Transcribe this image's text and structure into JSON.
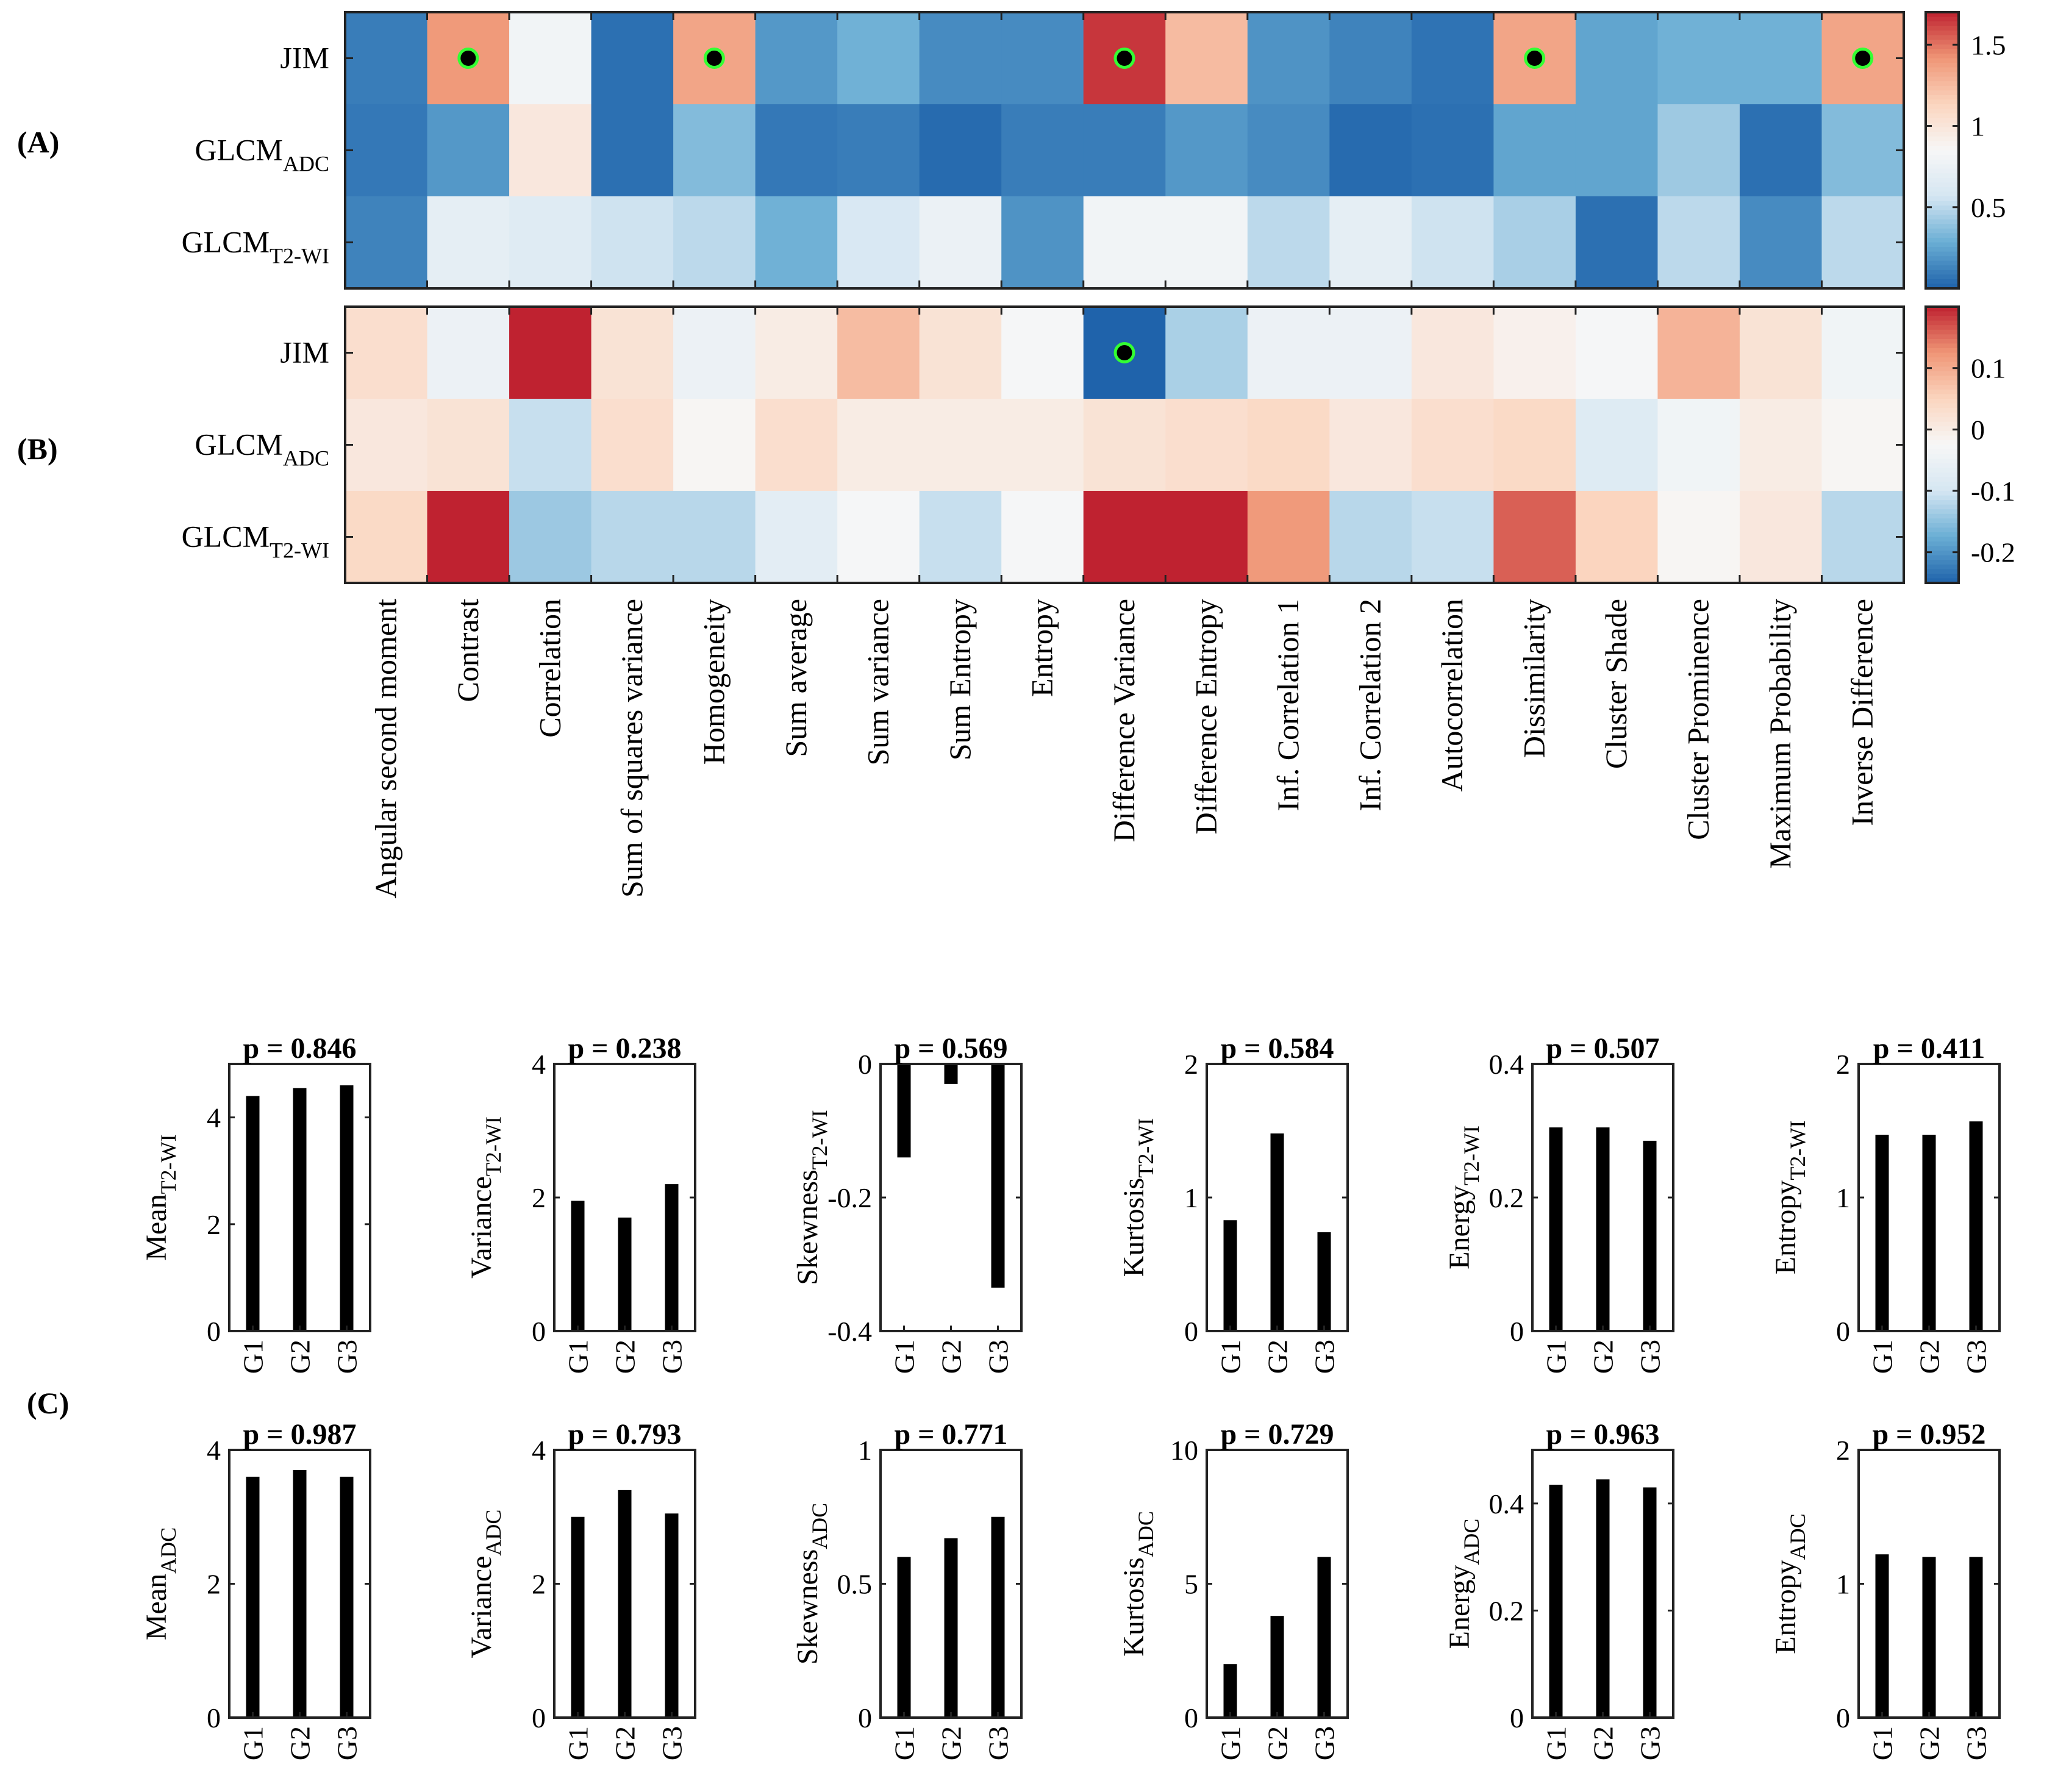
{
  "features": [
    "Angular second moment",
    "Contrast",
    "Correlation",
    "Sum of squares variance",
    "Homogeneity",
    "Sum average",
    "Sum variance",
    "Sum Entropy",
    "Entropy",
    "Difference Variance",
    "Difference Entropy",
    "Inf. Correlation 1",
    "Inf. Correlation 2",
    "Autocorrelation",
    "Dissimilarity",
    "Cluster Shade",
    "Cluster Prominence",
    "Maximum Probability",
    "Inverse Difference"
  ],
  "panelA": {
    "label": "(A)",
    "rows": [
      {
        "main": "JIM",
        "sub": ""
      },
      {
        "main": "GLCM",
        "sub": "ADC"
      },
      {
        "main": "GLCM",
        "sub": "T2-WI"
      }
    ],
    "values": [
      [
        0.1,
        1.4,
        0.8,
        0.05,
        1.35,
        0.2,
        0.3,
        0.15,
        0.15,
        1.65,
        1.25,
        0.18,
        0.12,
        0.06,
        1.35,
        0.25,
        0.3,
        0.3,
        1.35
      ],
      [
        0.08,
        0.2,
        0.98,
        0.05,
        0.35,
        0.08,
        0.1,
        0.03,
        0.1,
        0.1,
        0.2,
        0.15,
        0.03,
        0.05,
        0.25,
        0.25,
        0.42,
        0.05,
        0.35
      ],
      [
        0.12,
        0.7,
        0.65,
        0.55,
        0.5,
        0.3,
        0.6,
        0.75,
        0.18,
        0.8,
        0.8,
        0.5,
        0.7,
        0.55,
        0.45,
        0.05,
        0.5,
        0.15,
        0.5
      ]
    ],
    "markers": [
      [
        0,
        1
      ],
      [
        0,
        4
      ],
      [
        0,
        9
      ],
      [
        0,
        14
      ],
      [
        0,
        18
      ]
    ],
    "colorbar": {
      "min": 0.0,
      "max": 1.7,
      "ticks": [
        0.5,
        1,
        1.5
      ],
      "tick_labels": [
        "0.5",
        "1",
        "1.5"
      ]
    }
  },
  "panelB": {
    "label": "(B)",
    "rows": [
      {
        "main": "JIM",
        "sub": ""
      },
      {
        "main": "GLCM",
        "sub": "ADC"
      },
      {
        "main": "GLCM",
        "sub": "T2-WI"
      }
    ],
    "values": [
      [
        0.03,
        -0.05,
        0.2,
        0.02,
        -0.05,
        0.0,
        0.08,
        0.02,
        -0.03,
        -0.25,
        -0.13,
        -0.05,
        -0.05,
        0.01,
        -0.01,
        -0.03,
        0.09,
        0.02,
        -0.04
      ],
      [
        0.01,
        0.02,
        -0.11,
        0.03,
        -0.02,
        0.03,
        0.0,
        0.0,
        0.0,
        0.02,
        0.03,
        0.04,
        0.01,
        0.03,
        0.04,
        -0.08,
        -0.04,
        0.0,
        -0.02
      ],
      [
        0.04,
        0.2,
        -0.14,
        -0.12,
        -0.12,
        -0.07,
        -0.03,
        -0.11,
        -0.03,
        0.2,
        0.2,
        0.12,
        -0.12,
        -0.11,
        0.16,
        0.05,
        -0.02,
        0.01,
        -0.12
      ]
    ],
    "markers": [
      [
        0,
        9
      ]
    ],
    "colorbar": {
      "min": -0.25,
      "max": 0.2,
      "ticks": [
        0.1,
        0,
        -0.1,
        -0.2
      ],
      "tick_labels": [
        "0.1",
        "0",
        "-0.1",
        "-0.2"
      ]
    }
  },
  "panelC": {
    "label": "(C)",
    "categories": [
      "G1",
      "G2",
      "G3"
    ],
    "charts": [
      {
        "row": 0,
        "title": "p = 0.846",
        "ylabel_main": "Mean",
        "ylabel_sub": "T2-WI",
        "ylim": [
          0,
          5
        ],
        "ticks": [
          0,
          2,
          4
        ],
        "values": [
          4.4,
          4.55,
          4.6
        ]
      },
      {
        "row": 0,
        "title": "p = 0.238",
        "ylabel_main": "Variance",
        "ylabel_sub": "T2-WI",
        "ylim": [
          0,
          4
        ],
        "ticks": [
          0,
          2,
          4
        ],
        "values": [
          1.95,
          1.7,
          2.2
        ]
      },
      {
        "row": 0,
        "title": "p = 0.569",
        "ylabel_main": "Skewness",
        "ylabel_sub": "T2-WI",
        "ylim": [
          -0.4,
          0
        ],
        "ticks": [
          -0.4,
          -0.2,
          0
        ],
        "values": [
          -0.14,
          -0.03,
          -0.335
        ]
      },
      {
        "row": 0,
        "title": "p = 0.584",
        "ylabel_main": "Kurtosis",
        "ylabel_sub": "T2-WI",
        "ylim": [
          0,
          2
        ],
        "ticks": [
          0,
          1,
          2
        ],
        "values": [
          0.83,
          1.48,
          0.74
        ]
      },
      {
        "row": 0,
        "title": "p = 0.507",
        "ylabel_main": "Energy",
        "ylabel_sub": "T2-WI",
        "ylim": [
          0,
          0.4
        ],
        "ticks": [
          0,
          0.2,
          0.4
        ],
        "values": [
          0.305,
          0.305,
          0.285
        ]
      },
      {
        "row": 0,
        "title": "p = 0.411",
        "ylabel_main": "Entropy",
        "ylabel_sub": "T2-WI",
        "ylim": [
          0,
          2
        ],
        "ticks": [
          0,
          1,
          2
        ],
        "values": [
          1.47,
          1.47,
          1.57
        ]
      },
      {
        "row": 1,
        "title": "p = 0.987",
        "ylabel_main": "Mean",
        "ylabel_sub": "ADC",
        "ylim": [
          0,
          4
        ],
        "ticks": [
          0,
          2,
          4
        ],
        "values": [
          3.6,
          3.7,
          3.6
        ]
      },
      {
        "row": 1,
        "title": "p = 0.793",
        "ylabel_main": "Variance",
        "ylabel_sub": "ADC",
        "ylim": [
          0,
          4
        ],
        "ticks": [
          0,
          2,
          4
        ],
        "values": [
          3.0,
          3.4,
          3.05
        ]
      },
      {
        "row": 1,
        "title": "p = 0.771",
        "ylabel_main": "Skewness",
        "ylabel_sub": "ADC",
        "ylim": [
          0,
          1
        ],
        "ticks": [
          0,
          0.5,
          1
        ],
        "values": [
          0.6,
          0.67,
          0.75
        ]
      },
      {
        "row": 1,
        "title": "p = 0.729",
        "ylabel_main": "Kurtosis",
        "ylabel_sub": "ADC",
        "ylim": [
          0,
          10
        ],
        "ticks": [
          0,
          5,
          10
        ],
        "values": [
          2.0,
          3.8,
          6.0
        ]
      },
      {
        "row": 1,
        "title": "p = 0.963",
        "ylabel_main": "Energy",
        "ylabel_sub": "ADC",
        "ylim": [
          0,
          0.5
        ],
        "ticks": [
          0,
          0.2,
          0.4
        ],
        "values": [
          0.435,
          0.445,
          0.43
        ]
      },
      {
        "row": 1,
        "title": "p = 0.952",
        "ylabel_main": "Entropy",
        "ylabel_sub": "ADC",
        "ylim": [
          0,
          2
        ],
        "ticks": [
          0,
          1,
          2
        ],
        "values": [
          1.22,
          1.2,
          1.2
        ]
      }
    ]
  },
  "colors": {
    "dark_blue": "#1f63ab",
    "mid_blue": "#6aaed4",
    "light_blue": "#d5e6f2",
    "white": "#f7f7f7",
    "light_red": "#fbd5bf",
    "mid_red": "#ef9676",
    "dark_red": "#bf2230",
    "bar": "#000000",
    "marker_fill": "#000000",
    "marker_ring": "#33ff33"
  },
  "chart_data": [
    {
      "type": "heatmap",
      "title": "(A)",
      "rows": [
        "JIM",
        "GLCM ADC",
        "GLCM T2-WI"
      ],
      "columns_ref": "features",
      "values_ref": "panelA.values",
      "clim": [
        0.0,
        1.7
      ],
      "colorbar_ticks": [
        0.5,
        1,
        1.5
      ]
    },
    {
      "type": "heatmap",
      "title": "(B)",
      "rows": [
        "JIM",
        "GLCM ADC",
        "GLCM T2-WI"
      ],
      "columns_ref": "features",
      "values_ref": "panelB.values",
      "clim": [
        -0.25,
        0.2
      ],
      "colorbar_ticks": [
        -0.2,
        -0.1,
        0,
        0.1
      ]
    },
    {
      "type": "bar",
      "title": "(C)",
      "categories": [
        "G1",
        "G2",
        "G3"
      ],
      "series_ref": "panelC.charts"
    }
  ]
}
